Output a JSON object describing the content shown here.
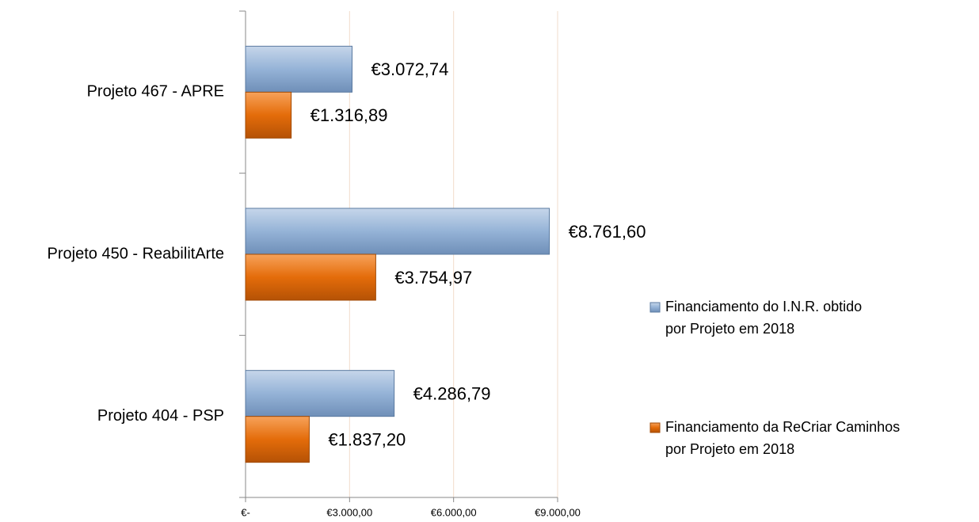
{
  "chart_data": {
    "type": "bar",
    "orientation": "horizontal",
    "categories": [
      "Projeto 467 - APRE",
      "Projeto 450 - ReabilitArte",
      "Projeto 404 - PSP"
    ],
    "series": [
      {
        "name": "Financiamento do I.N.R. obtido por Projeto em 2018",
        "color": "#95b3d7",
        "values": [
          3072.74,
          8761.6,
          4286.79
        ],
        "value_labels": [
          "€3.072,74",
          "€8.761,60",
          "€4.286,79"
        ]
      },
      {
        "name": "Financiamento da ReCriar Caminhos por Projeto em 2018",
        "color": "#e46c0a",
        "values": [
          1316.89,
          3754.97,
          1837.2
        ],
        "value_labels": [
          "€1.316,89",
          "€3.754,97",
          "€1.837,20"
        ]
      }
    ],
    "xlim": [
      0,
      9000
    ],
    "xticks": [
      {
        "value": 0,
        "label": "€-"
      },
      {
        "value": 3000,
        "label": "€3.000,00"
      },
      {
        "value": 6000,
        "label": "€6.000,00"
      },
      {
        "value": 9000,
        "label": "€9.000,00"
      }
    ],
    "grid": true,
    "legend": "right"
  }
}
